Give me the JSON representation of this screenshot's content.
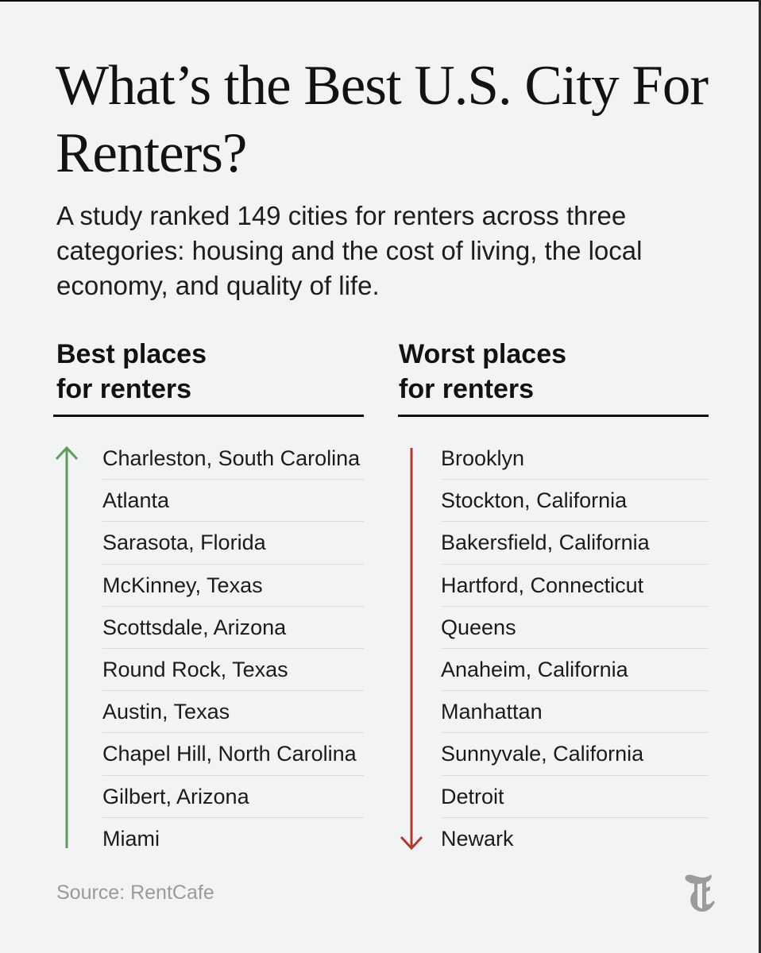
{
  "title": "What’s the Best U.S. City For Renters?",
  "subtitle": "A study ranked 149 cities for renters across three categories: housing and the cost of living, the local economy, and quality of life.",
  "best": {
    "heading_line1": "Best places",
    "heading_line2": "for renters",
    "arrow_color": "#5a9e5a",
    "items": [
      "Charleston, South Carolina",
      "Atlanta",
      "Sarasota, Florida",
      "McKinney, Texas",
      "Scottsdale, Arizona",
      "Round Rock, Texas",
      "Austin, Texas",
      "Chapel Hill, North Carolina",
      "Gilbert, Arizona",
      "Miami"
    ]
  },
  "worst": {
    "heading_line1": "Worst places",
    "heading_line2": "for renters",
    "arrow_color": "#b5382e",
    "items": [
      "Brooklyn",
      "Stockton, California",
      "Bakersfield, California",
      "Hartford, Connecticut",
      "Queens",
      "Anaheim, California",
      "Manhattan",
      "Sunnyvale, California",
      "Detroit",
      "Newark"
    ]
  },
  "source": "Source: RentCafe",
  "logo_icon": "nyt-t-logo-icon"
}
